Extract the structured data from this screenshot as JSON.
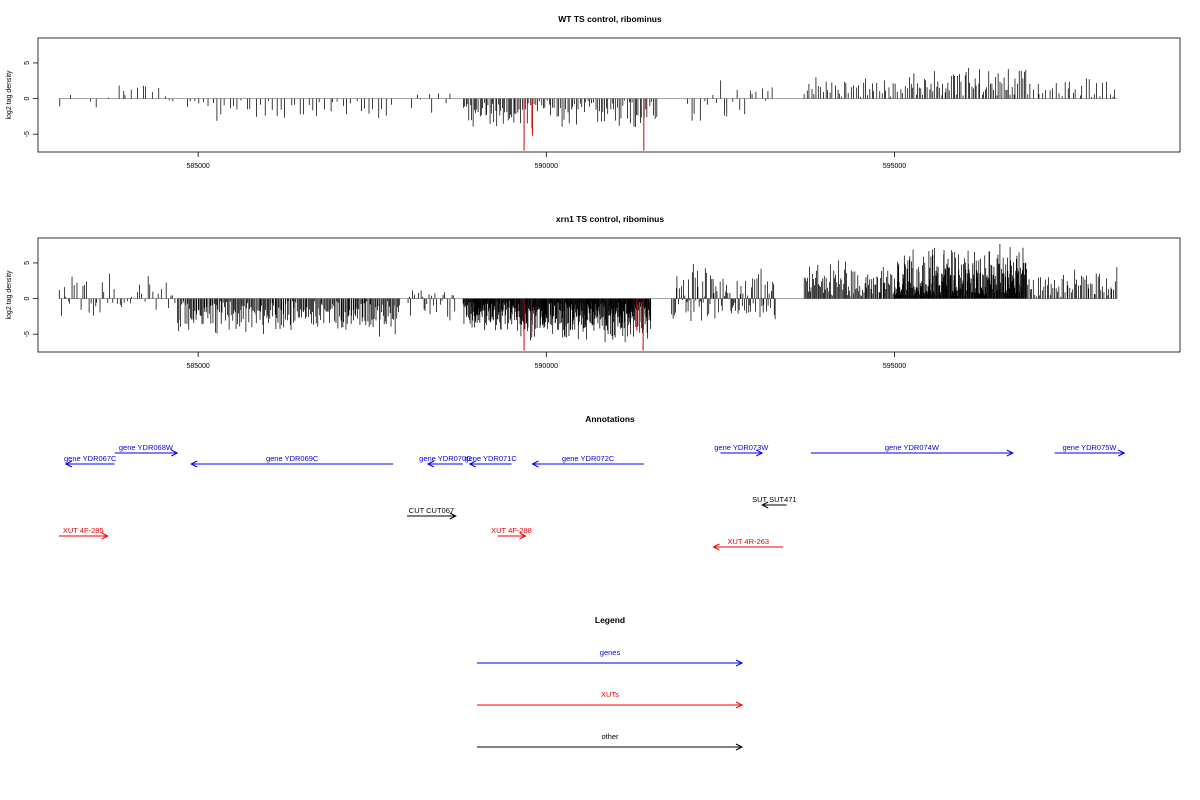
{
  "chart_data": [
    {
      "type": "bar",
      "title": "WT TS control, ribominus",
      "ylabel": "log2 tag density",
      "xlabel": "",
      "xlim": [
        582700,
        599100
      ],
      "ylim": [
        -7.5,
        8.5
      ],
      "xticks": [
        585000,
        590000,
        595000
      ],
      "yticks": [
        -5,
        0,
        5
      ],
      "grid": false,
      "highlight_color": "#cc0000",
      "baseline_color": "#999999",
      "highlight_positions": [
        589700,
        589830,
        591300,
        591400
      ],
      "regions": [
        {
          "x0": 583000,
          "x1": 584000,
          "n": 6,
          "min": -2.0,
          "max": 0.8
        },
        {
          "x0": 583800,
          "x1": 584500,
          "n": 8,
          "min": 0.5,
          "max": 2.8
        },
        {
          "x0": 584500,
          "x1": 584700,
          "n": 3,
          "min": -2.5,
          "max": 1.0
        },
        {
          "x0": 584800,
          "x1": 587800,
          "n": 48,
          "min": -3.5,
          "max": -0.3
        },
        {
          "x0": 588000,
          "x1": 588700,
          "n": 8,
          "min": -3.0,
          "max": 1.5
        },
        {
          "x0": 588800,
          "x1": 589600,
          "n": 40,
          "min": -5.0,
          "max": -0.8
        },
        {
          "x0": 589600,
          "x1": 591600,
          "n": 75,
          "min": -4.5,
          "max": -0.3
        },
        {
          "x0": 592000,
          "x1": 593300,
          "n": 22,
          "min": -3.5,
          "max": 2.8
        },
        {
          "x0": 593700,
          "x1": 595200,
          "n": 45,
          "min": 0.3,
          "max": 3.5
        },
        {
          "x0": 595200,
          "x1": 596900,
          "n": 70,
          "min": 0.5,
          "max": 5.2
        },
        {
          "x0": 596900,
          "x1": 598200,
          "n": 30,
          "min": 0.3,
          "max": 3.0
        }
      ],
      "highlight_bars": [
        {
          "x": 589680,
          "y": -7.3
        },
        {
          "x": 589800,
          "y": -5.2
        },
        {
          "x": 591280,
          "y": -4.0
        },
        {
          "x": 591400,
          "y": -7.3
        }
      ]
    },
    {
      "type": "bar",
      "title": "xrn1 TS control, ribominus",
      "ylabel": "log2 tag density",
      "xlabel": "",
      "xlim": [
        582700,
        599100
      ],
      "ylim": [
        -7.5,
        8.5
      ],
      "xticks": [
        585000,
        590000,
        595000
      ],
      "yticks": [
        -5,
        0,
        5
      ],
      "grid": false,
      "highlight_color": "#cc0000",
      "baseline_color": "#999999",
      "regions": [
        {
          "x0": 583000,
          "x1": 583600,
          "n": 20,
          "min": -3.0,
          "max": 3.5
        },
        {
          "x0": 583600,
          "x1": 584700,
          "n": 30,
          "min": -2.0,
          "max": 3.8
        },
        {
          "x0": 584700,
          "x1": 587900,
          "n": 220,
          "min": -5.5,
          "max": -0.5
        },
        {
          "x0": 588000,
          "x1": 588700,
          "n": 30,
          "min": -3.5,
          "max": 1.5
        },
        {
          "x0": 588800,
          "x1": 589600,
          "n": 110,
          "min": -5.0,
          "max": -0.5
        },
        {
          "x0": 589600,
          "x1": 591500,
          "n": 280,
          "min": -6.5,
          "max": -0.5
        },
        {
          "x0": 591800,
          "x1": 593300,
          "n": 100,
          "min": -3.5,
          "max": 6.0
        },
        {
          "x0": 593700,
          "x1": 595000,
          "n": 90,
          "min": 0.5,
          "max": 5.5
        },
        {
          "x0": 595000,
          "x1": 596900,
          "n": 260,
          "min": 0.5,
          "max": 7.8
        },
        {
          "x0": 596900,
          "x1": 598200,
          "n": 60,
          "min": 0.3,
          "max": 4.5
        }
      ],
      "highlight_bars": [
        {
          "x": 589680,
          "y": -7.3
        },
        {
          "x": 589790,
          "y": -5.5
        },
        {
          "x": 591300,
          "y": -4.5
        },
        {
          "x": 591390,
          "y": -7.3
        }
      ]
    }
  ],
  "annotations": {
    "title": "Annotations",
    "xlim": [
      582700,
      599100
    ],
    "features": [
      {
        "label": "gene YDR067C",
        "start": 583100,
        "end": 583800,
        "dir": "left",
        "color": "#0000ee",
        "row": 2
      },
      {
        "label": "gene YDR068W",
        "start": 583800,
        "end": 584700,
        "dir": "right",
        "color": "#0000ee",
        "row": 1
      },
      {
        "label": "gene YDR069C",
        "start": 584900,
        "end": 587800,
        "dir": "left",
        "color": "#0000ee",
        "row": 2
      },
      {
        "label": "gene YDR070C",
        "start": 588300,
        "end": 588800,
        "dir": "left",
        "color": "#0000ee",
        "row": 2
      },
      {
        "label": "gene YDR071C",
        "start": 588900,
        "end": 589500,
        "dir": "left",
        "color": "#0000ee",
        "row": 2
      },
      {
        "label": "gene YDR072C",
        "start": 589800,
        "end": 591400,
        "dir": "left",
        "color": "#0000ee",
        "row": 2
      },
      {
        "label": "gene YDR073W",
        "start": 592500,
        "end": 593100,
        "dir": "right",
        "color": "#0000ee",
        "row": 1
      },
      {
        "label": "gene YDR074W",
        "start": 593800,
        "end": 596700,
        "dir": "right",
        "color": "#0000ee",
        "row": 1
      },
      {
        "label": "gene YDR075W",
        "start": 597300,
        "end": 598300,
        "dir": "right",
        "color": "#0000ee",
        "row": 1
      },
      {
        "label": "SUT SUT471",
        "start": 593100,
        "end": 593450,
        "dir": "left",
        "color": "#000000",
        "row": 3
      },
      {
        "label": "CUT CUT067",
        "start": 588000,
        "end": 588700,
        "dir": "right",
        "color": "#000000",
        "row": 4
      },
      {
        "label": "XUT 4F-285",
        "start": 583000,
        "end": 583700,
        "dir": "right",
        "color": "#ee0000",
        "row": 5
      },
      {
        "label": "XUT 4F-288",
        "start": 589300,
        "end": 589700,
        "dir": "right",
        "color": "#ee0000",
        "row": 5
      },
      {
        "label": "XUT 4R-263",
        "start": 592400,
        "end": 593400,
        "dir": "left",
        "color": "#ee0000",
        "row": 6
      }
    ]
  },
  "legend": {
    "title": "Legend",
    "items": [
      {
        "label": "genes",
        "color": "#0000ee"
      },
      {
        "label": "XUTs",
        "color": "#ee0000"
      },
      {
        "label": "other",
        "color": "#000000"
      }
    ]
  }
}
